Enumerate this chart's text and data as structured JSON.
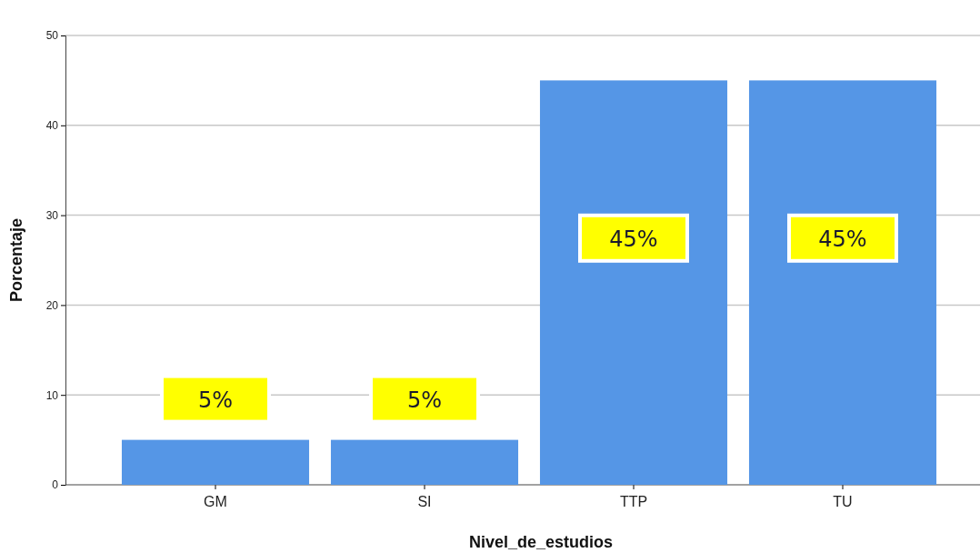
{
  "chart_data": {
    "type": "bar",
    "xlabel": "Nivel_de_estudios",
    "ylabel": "Porcentaje",
    "categories": [
      "GM",
      "SI",
      "TTP",
      "TU"
    ],
    "values": [
      5,
      5,
      45,
      45
    ],
    "value_labels": [
      "5%",
      "5%",
      "45%",
      "45%"
    ],
    "color": "#5596e6",
    "ylim": [
      0,
      50
    ],
    "yticks": [
      0,
      10,
      20,
      30,
      40,
      50
    ],
    "grid": "y"
  }
}
